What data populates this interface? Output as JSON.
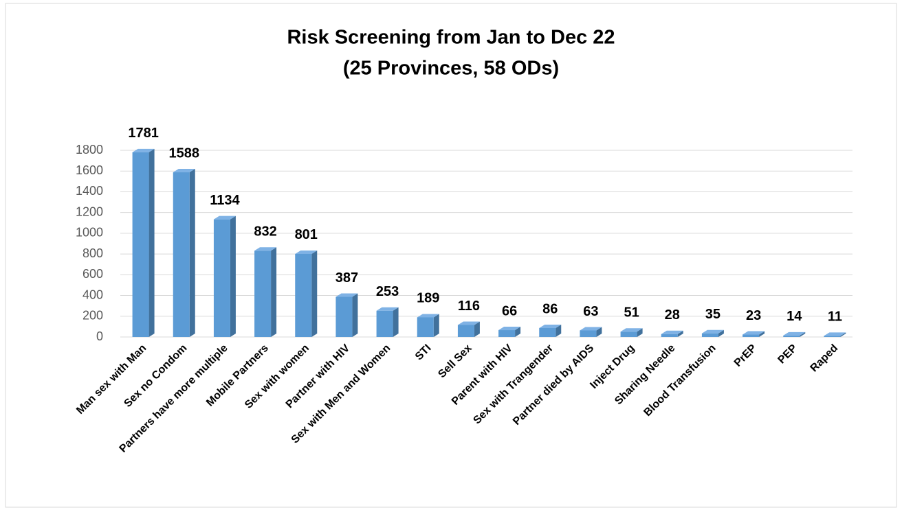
{
  "chart_data": {
    "type": "bar3d",
    "title": [
      "Risk Screening from Jan to Dec 22",
      "(25 Provinces, 58 ODs)"
    ],
    "categories": [
      "Man sex with Man",
      "Sex no Condom",
      "Partners have more multiple",
      "Mobile Partners",
      "Sex with women",
      "Partner with HIV",
      "Sex with Men and Women",
      "STI",
      "Sell Sex",
      "Parent with HIV",
      "Sex with Trangender",
      "Partner died by AIDS",
      "Inject Drug",
      "Sharing Needle",
      "Blood Transfusion",
      "PrEP",
      "PEP",
      "Raped"
    ],
    "values": [
      1781,
      1588,
      1134,
      832,
      801,
      387,
      253,
      189,
      116,
      66,
      86,
      63,
      51,
      28,
      35,
      23,
      14,
      11
    ],
    "color": "#5b9bd5",
    "ylim": [
      0,
      1800
    ],
    "yticks": [
      0,
      200,
      400,
      600,
      800,
      1000,
      1200,
      1400,
      1600,
      1800
    ],
    "grid": true
  }
}
